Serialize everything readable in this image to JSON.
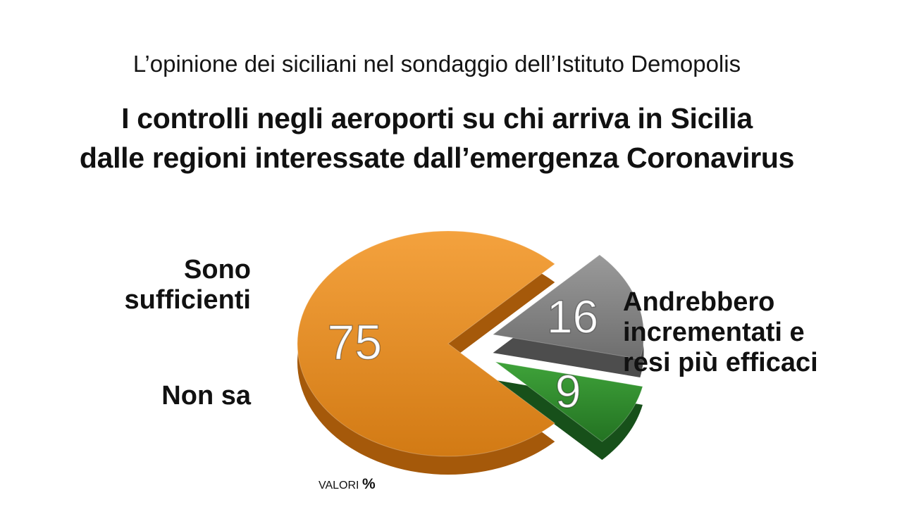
{
  "kicker": "L’opinione dei siciliani nel sondaggio dell’Istituto Demopolis",
  "title_lines": [
    "I controlli negli aeroporti su chi arriva in Sicilia",
    "dalle regioni interessate dall’emergenza Coronavirus"
  ],
  "labels": {
    "sufficienti": [
      "Sono",
      "sufficienti"
    ],
    "non_sa": [
      "Non sa"
    ],
    "andrebbero": [
      "Andrebbero",
      "incrementati e",
      "resi più efficaci"
    ]
  },
  "units": {
    "text": "VALORI",
    "symbol": "%"
  },
  "colors": {
    "andrebbero": "#e08a1e",
    "non_sa": "#8a8a8a",
    "sufficienti": "#2e8a2a"
  },
  "chart_data": {
    "type": "pie",
    "style": "3d-exploded",
    "unit": "%",
    "slices": [
      {
        "label": "Andrebbero incrementati e resi più efficaci",
        "value": 75
      },
      {
        "label": "Non sa",
        "value": 16
      },
      {
        "label": "Sono sufficienti",
        "value": 9
      }
    ]
  }
}
